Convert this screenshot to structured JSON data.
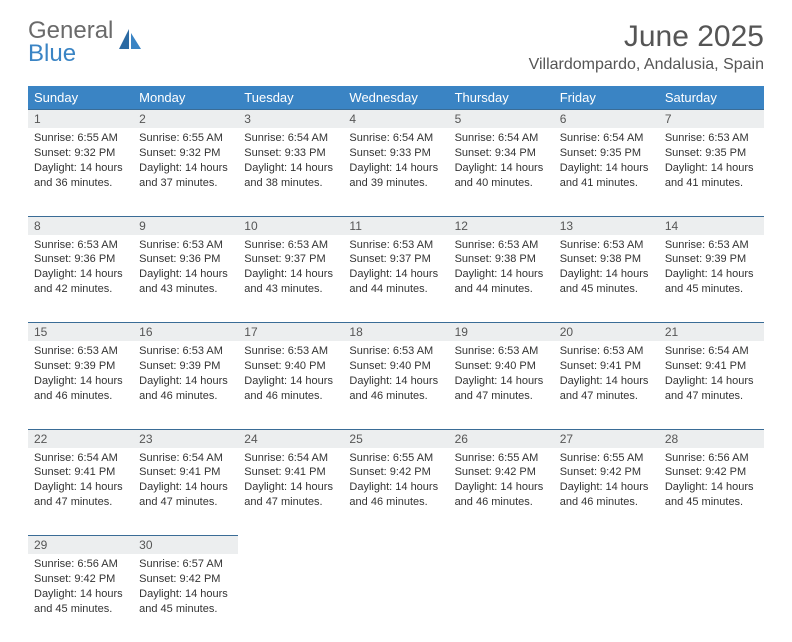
{
  "brand": {
    "line1": "General",
    "line2": "Blue"
  },
  "colors": {
    "header_bg": "#3a84c4",
    "header_text": "#ffffff",
    "daynum_bg": "#eceeef",
    "daynum_text": "#565656",
    "rule": "#3a6c96",
    "body_text": "#333333",
    "title_text": "#555555"
  },
  "title": "June 2025",
  "location": "Villardompardo, Andalusia, Spain",
  "weekdays": [
    "Sunday",
    "Monday",
    "Tuesday",
    "Wednesday",
    "Thursday",
    "Friday",
    "Saturday"
  ],
  "weeks": [
    [
      {
        "n": "1",
        "sr": "6:55 AM",
        "ss": "9:32 PM",
        "dl": "14 hours and 36 minutes."
      },
      {
        "n": "2",
        "sr": "6:55 AM",
        "ss": "9:32 PM",
        "dl": "14 hours and 37 minutes."
      },
      {
        "n": "3",
        "sr": "6:54 AM",
        "ss": "9:33 PM",
        "dl": "14 hours and 38 minutes."
      },
      {
        "n": "4",
        "sr": "6:54 AM",
        "ss": "9:33 PM",
        "dl": "14 hours and 39 minutes."
      },
      {
        "n": "5",
        "sr": "6:54 AM",
        "ss": "9:34 PM",
        "dl": "14 hours and 40 minutes."
      },
      {
        "n": "6",
        "sr": "6:54 AM",
        "ss": "9:35 PM",
        "dl": "14 hours and 41 minutes."
      },
      {
        "n": "7",
        "sr": "6:53 AM",
        "ss": "9:35 PM",
        "dl": "14 hours and 41 minutes."
      }
    ],
    [
      {
        "n": "8",
        "sr": "6:53 AM",
        "ss": "9:36 PM",
        "dl": "14 hours and 42 minutes."
      },
      {
        "n": "9",
        "sr": "6:53 AM",
        "ss": "9:36 PM",
        "dl": "14 hours and 43 minutes."
      },
      {
        "n": "10",
        "sr": "6:53 AM",
        "ss": "9:37 PM",
        "dl": "14 hours and 43 minutes."
      },
      {
        "n": "11",
        "sr": "6:53 AM",
        "ss": "9:37 PM",
        "dl": "14 hours and 44 minutes."
      },
      {
        "n": "12",
        "sr": "6:53 AM",
        "ss": "9:38 PM",
        "dl": "14 hours and 44 minutes."
      },
      {
        "n": "13",
        "sr": "6:53 AM",
        "ss": "9:38 PM",
        "dl": "14 hours and 45 minutes."
      },
      {
        "n": "14",
        "sr": "6:53 AM",
        "ss": "9:39 PM",
        "dl": "14 hours and 45 minutes."
      }
    ],
    [
      {
        "n": "15",
        "sr": "6:53 AM",
        "ss": "9:39 PM",
        "dl": "14 hours and 46 minutes."
      },
      {
        "n": "16",
        "sr": "6:53 AM",
        "ss": "9:39 PM",
        "dl": "14 hours and 46 minutes."
      },
      {
        "n": "17",
        "sr": "6:53 AM",
        "ss": "9:40 PM",
        "dl": "14 hours and 46 minutes."
      },
      {
        "n": "18",
        "sr": "6:53 AM",
        "ss": "9:40 PM",
        "dl": "14 hours and 46 minutes."
      },
      {
        "n": "19",
        "sr": "6:53 AM",
        "ss": "9:40 PM",
        "dl": "14 hours and 47 minutes."
      },
      {
        "n": "20",
        "sr": "6:53 AM",
        "ss": "9:41 PM",
        "dl": "14 hours and 47 minutes."
      },
      {
        "n": "21",
        "sr": "6:54 AM",
        "ss": "9:41 PM",
        "dl": "14 hours and 47 minutes."
      }
    ],
    [
      {
        "n": "22",
        "sr": "6:54 AM",
        "ss": "9:41 PM",
        "dl": "14 hours and 47 minutes."
      },
      {
        "n": "23",
        "sr": "6:54 AM",
        "ss": "9:41 PM",
        "dl": "14 hours and 47 minutes."
      },
      {
        "n": "24",
        "sr": "6:54 AM",
        "ss": "9:41 PM",
        "dl": "14 hours and 47 minutes."
      },
      {
        "n": "25",
        "sr": "6:55 AM",
        "ss": "9:42 PM",
        "dl": "14 hours and 46 minutes."
      },
      {
        "n": "26",
        "sr": "6:55 AM",
        "ss": "9:42 PM",
        "dl": "14 hours and 46 minutes."
      },
      {
        "n": "27",
        "sr": "6:55 AM",
        "ss": "9:42 PM",
        "dl": "14 hours and 46 minutes."
      },
      {
        "n": "28",
        "sr": "6:56 AM",
        "ss": "9:42 PM",
        "dl": "14 hours and 45 minutes."
      }
    ],
    [
      {
        "n": "29",
        "sr": "6:56 AM",
        "ss": "9:42 PM",
        "dl": "14 hours and 45 minutes."
      },
      {
        "n": "30",
        "sr": "6:57 AM",
        "ss": "9:42 PM",
        "dl": "14 hours and 45 minutes."
      },
      null,
      null,
      null,
      null,
      null
    ]
  ],
  "labels": {
    "sunrise": "Sunrise: ",
    "sunset": "Sunset: ",
    "daylight": "Daylight: "
  }
}
